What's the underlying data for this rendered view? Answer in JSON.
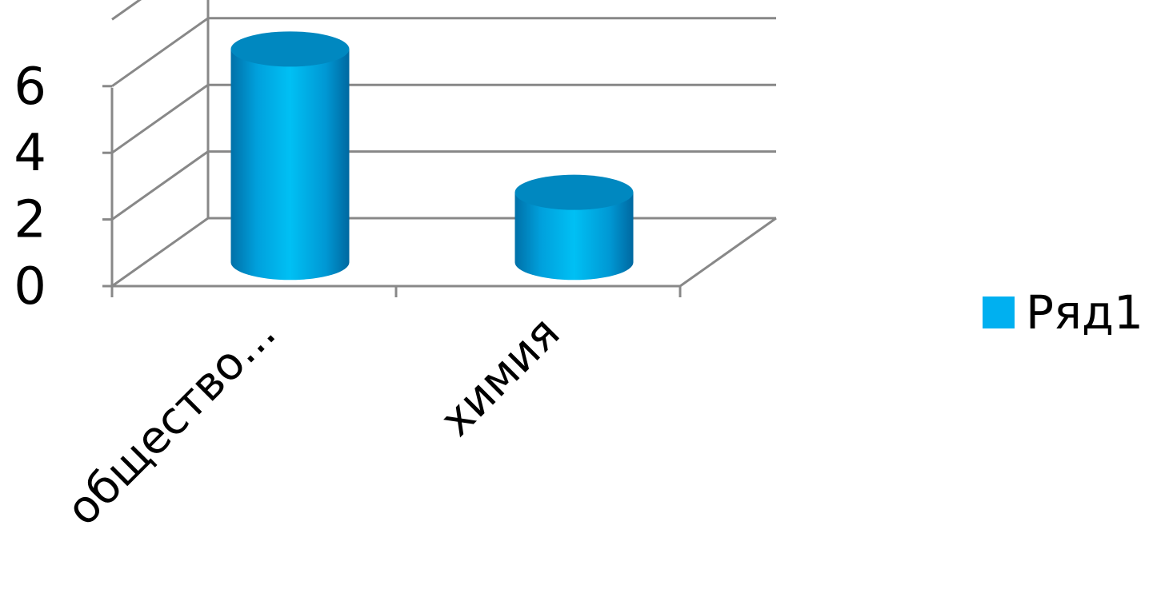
{
  "chart_data": {
    "type": "bar",
    "categories": [
      "общество...",
      "химия"
    ],
    "series": [
      {
        "name": "Ряд1",
        "values": [
          6.4,
          2.1
        ]
      }
    ],
    "ylim": [
      0,
      6
    ],
    "yticks": [
      0,
      2,
      4,
      6
    ],
    "grid": true,
    "legend_position": "right",
    "bar_shape": "cylinder-3d"
  },
  "colors": {
    "bar_light": "#00B8F0",
    "bar_dark": "#0077AA",
    "bar_top": "#0088C0",
    "legend_swatch": "#00B0F0",
    "grid": "#888888"
  }
}
